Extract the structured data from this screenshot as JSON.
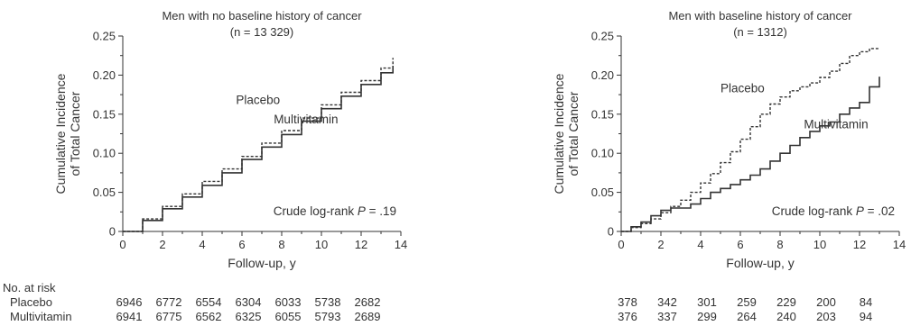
{
  "chart_data": [
    {
      "type": "line",
      "title": "Men with no baseline history of cancer",
      "subtitle": "(n = 13 329)",
      "xlabel": "Follow-up, y",
      "ylabel_line1": "Cumulative Incidence",
      "ylabel_line2": "of Total Cancer",
      "xlim": [
        0,
        14
      ],
      "ylim": [
        0,
        0.25
      ],
      "x_ticks": [
        0,
        2,
        4,
        6,
        8,
        10,
        12,
        14
      ],
      "y_ticks": [
        0,
        0.05,
        0.1,
        0.15,
        0.2,
        0.25
      ],
      "y_tick_labels": [
        "0",
        "0.05",
        "0.10",
        "0.15",
        "0.20",
        "0.25"
      ],
      "grid": false,
      "annotation_prefix": "Crude log-rank ",
      "annotation_p": "P",
      "annotation_suffix": " = .19",
      "series_labels": [
        {
          "text": "Placebo",
          "x": 5.7,
          "y": 0.163
        },
        {
          "text": "Multivitamin",
          "x": 7.6,
          "y": 0.138
        }
      ],
      "series": [
        {
          "name": "Placebo",
          "style": "dashed",
          "x": [
            0,
            1,
            2,
            3,
            4,
            5,
            6,
            7,
            8,
            9,
            10,
            11,
            12,
            13,
            13.6
          ],
          "y": [
            0,
            0.016,
            0.032,
            0.048,
            0.064,
            0.08,
            0.096,
            0.113,
            0.129,
            0.145,
            0.162,
            0.178,
            0.193,
            0.209,
            0.222
          ]
        },
        {
          "name": "Multivitamin",
          "style": "solid",
          "x": [
            0,
            1,
            2,
            3,
            4,
            5,
            6,
            7,
            8,
            9,
            10,
            11,
            12,
            13,
            13.6
          ],
          "y": [
            0,
            0.014,
            0.029,
            0.044,
            0.059,
            0.075,
            0.092,
            0.108,
            0.124,
            0.141,
            0.157,
            0.173,
            0.188,
            0.203,
            0.212
          ]
        }
      ],
      "at_risk": {
        "x": [
          0,
          2,
          4,
          6,
          8,
          10,
          12
        ],
        "placebo": [
          "6946",
          "6772",
          "6554",
          "6304",
          "6033",
          "5738",
          "2682"
        ],
        "multivitamin": [
          "6941",
          "6775",
          "6562",
          "6325",
          "6055",
          "5793",
          "2689"
        ]
      }
    },
    {
      "type": "line",
      "title": "Men with baseline history of cancer",
      "subtitle": "(n = 1312)",
      "xlabel": "Follow-up, y",
      "ylabel_line1": "Cumulative Incidence",
      "ylabel_line2": "of Total Cancer",
      "xlim": [
        0,
        14
      ],
      "ylim": [
        0,
        0.25
      ],
      "x_ticks": [
        0,
        2,
        4,
        6,
        8,
        10,
        12,
        14
      ],
      "y_ticks": [
        0,
        0.05,
        0.1,
        0.15,
        0.2,
        0.25
      ],
      "y_tick_labels": [
        "0",
        "0.05",
        "0.10",
        "0.15",
        "0.20",
        "0.25"
      ],
      "grid": false,
      "annotation_prefix": "Crude log-rank ",
      "annotation_p": "P",
      "annotation_suffix": " = .02",
      "series_labels": [
        {
          "text": "Placebo",
          "x": 5.0,
          "y": 0.178
        },
        {
          "text": "Multivitamin",
          "x": 9.2,
          "y": 0.132
        }
      ],
      "series": [
        {
          "name": "Placebo",
          "style": "dashed",
          "x": [
            0,
            0.5,
            1,
            1.5,
            2,
            2.5,
            3,
            3.5,
            4,
            4.5,
            5,
            5.5,
            6,
            6.5,
            7,
            7.5,
            8,
            8.5,
            9,
            9.5,
            10,
            10.5,
            11,
            11.5,
            12,
            12.5,
            13
          ],
          "y": [
            0,
            0.005,
            0.01,
            0.016,
            0.024,
            0.032,
            0.04,
            0.05,
            0.062,
            0.074,
            0.088,
            0.102,
            0.118,
            0.134,
            0.15,
            0.163,
            0.172,
            0.18,
            0.185,
            0.19,
            0.197,
            0.205,
            0.215,
            0.225,
            0.23,
            0.234,
            0.235
          ]
        },
        {
          "name": "Multivitamin",
          "style": "solid",
          "x": [
            0,
            0.5,
            1,
            1.5,
            2,
            2.5,
            3,
            3.5,
            4,
            4.5,
            5,
            5.5,
            6,
            6.5,
            7,
            7.5,
            8,
            8.5,
            9,
            9.5,
            10,
            10.5,
            11,
            11.5,
            12,
            12.5,
            13
          ],
          "y": [
            0,
            0.006,
            0.012,
            0.02,
            0.027,
            0.03,
            0.03,
            0.035,
            0.042,
            0.05,
            0.055,
            0.06,
            0.066,
            0.072,
            0.08,
            0.09,
            0.1,
            0.11,
            0.12,
            0.128,
            0.135,
            0.14,
            0.15,
            0.158,
            0.165,
            0.185,
            0.198
          ]
        }
      ],
      "at_risk": {
        "x": [
          0,
          2,
          4,
          6,
          8,
          10,
          12
        ],
        "placebo": [
          "378",
          "342",
          "301",
          "259",
          "229",
          "200",
          "84"
        ],
        "multivitamin": [
          "376",
          "337",
          "299",
          "264",
          "240",
          "203",
          "94"
        ]
      }
    }
  ],
  "risk_table": {
    "heading": "No. at risk",
    "row_placebo": "Placebo",
    "row_multivitamin": "Multivitamin"
  }
}
